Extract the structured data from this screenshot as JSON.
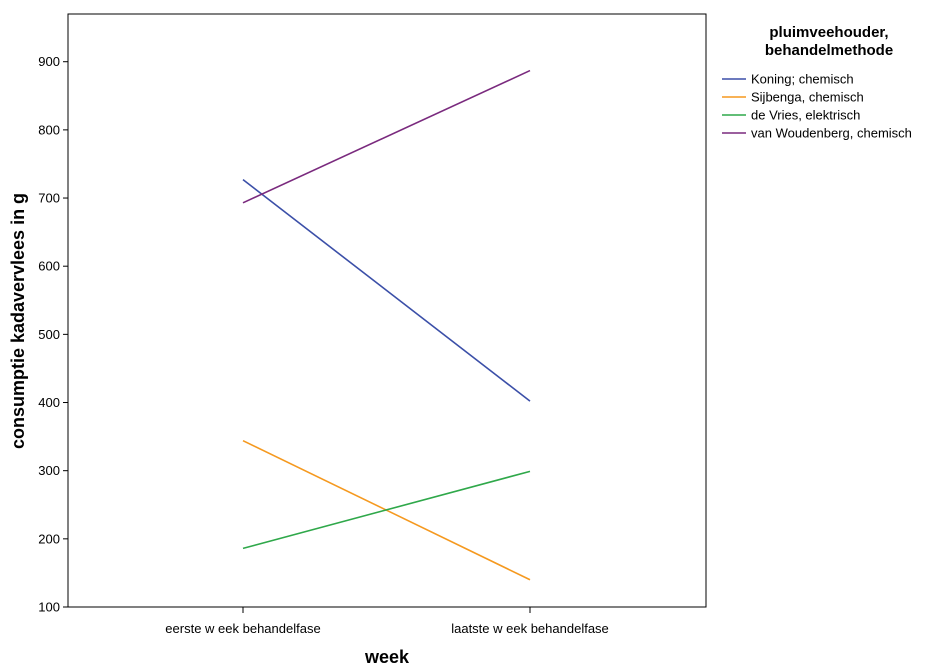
{
  "chart_data": {
    "type": "line",
    "categories": [
      "eerste w eek behandelfase",
      "laatste w eek behandelfase"
    ],
    "xlabel": "week",
    "ylabel": "consumptie kadavervlees in g",
    "ylim": [
      100,
      970
    ],
    "yticks": [
      100,
      200,
      300,
      400,
      500,
      600,
      700,
      800,
      900
    ],
    "grid": false,
    "legend": {
      "title_line1": "pluimveehouder,",
      "title_line2": "behandelmethode",
      "placement": "right"
    },
    "series": [
      {
        "name": "Koning; chemisch",
        "color": "#3b4fa8",
        "values": [
          727,
          402
        ]
      },
      {
        "name": "Sijbenga, chemisch",
        "color": "#f5991f",
        "values": [
          344,
          140
        ]
      },
      {
        "name": "de Vries, elektrisch",
        "color": "#2fa84a",
        "values": [
          186,
          299
        ]
      },
      {
        "name": "van Woudenberg, chemisch",
        "color": "#7a2a7e",
        "values": [
          693,
          887
        ]
      }
    ]
  }
}
